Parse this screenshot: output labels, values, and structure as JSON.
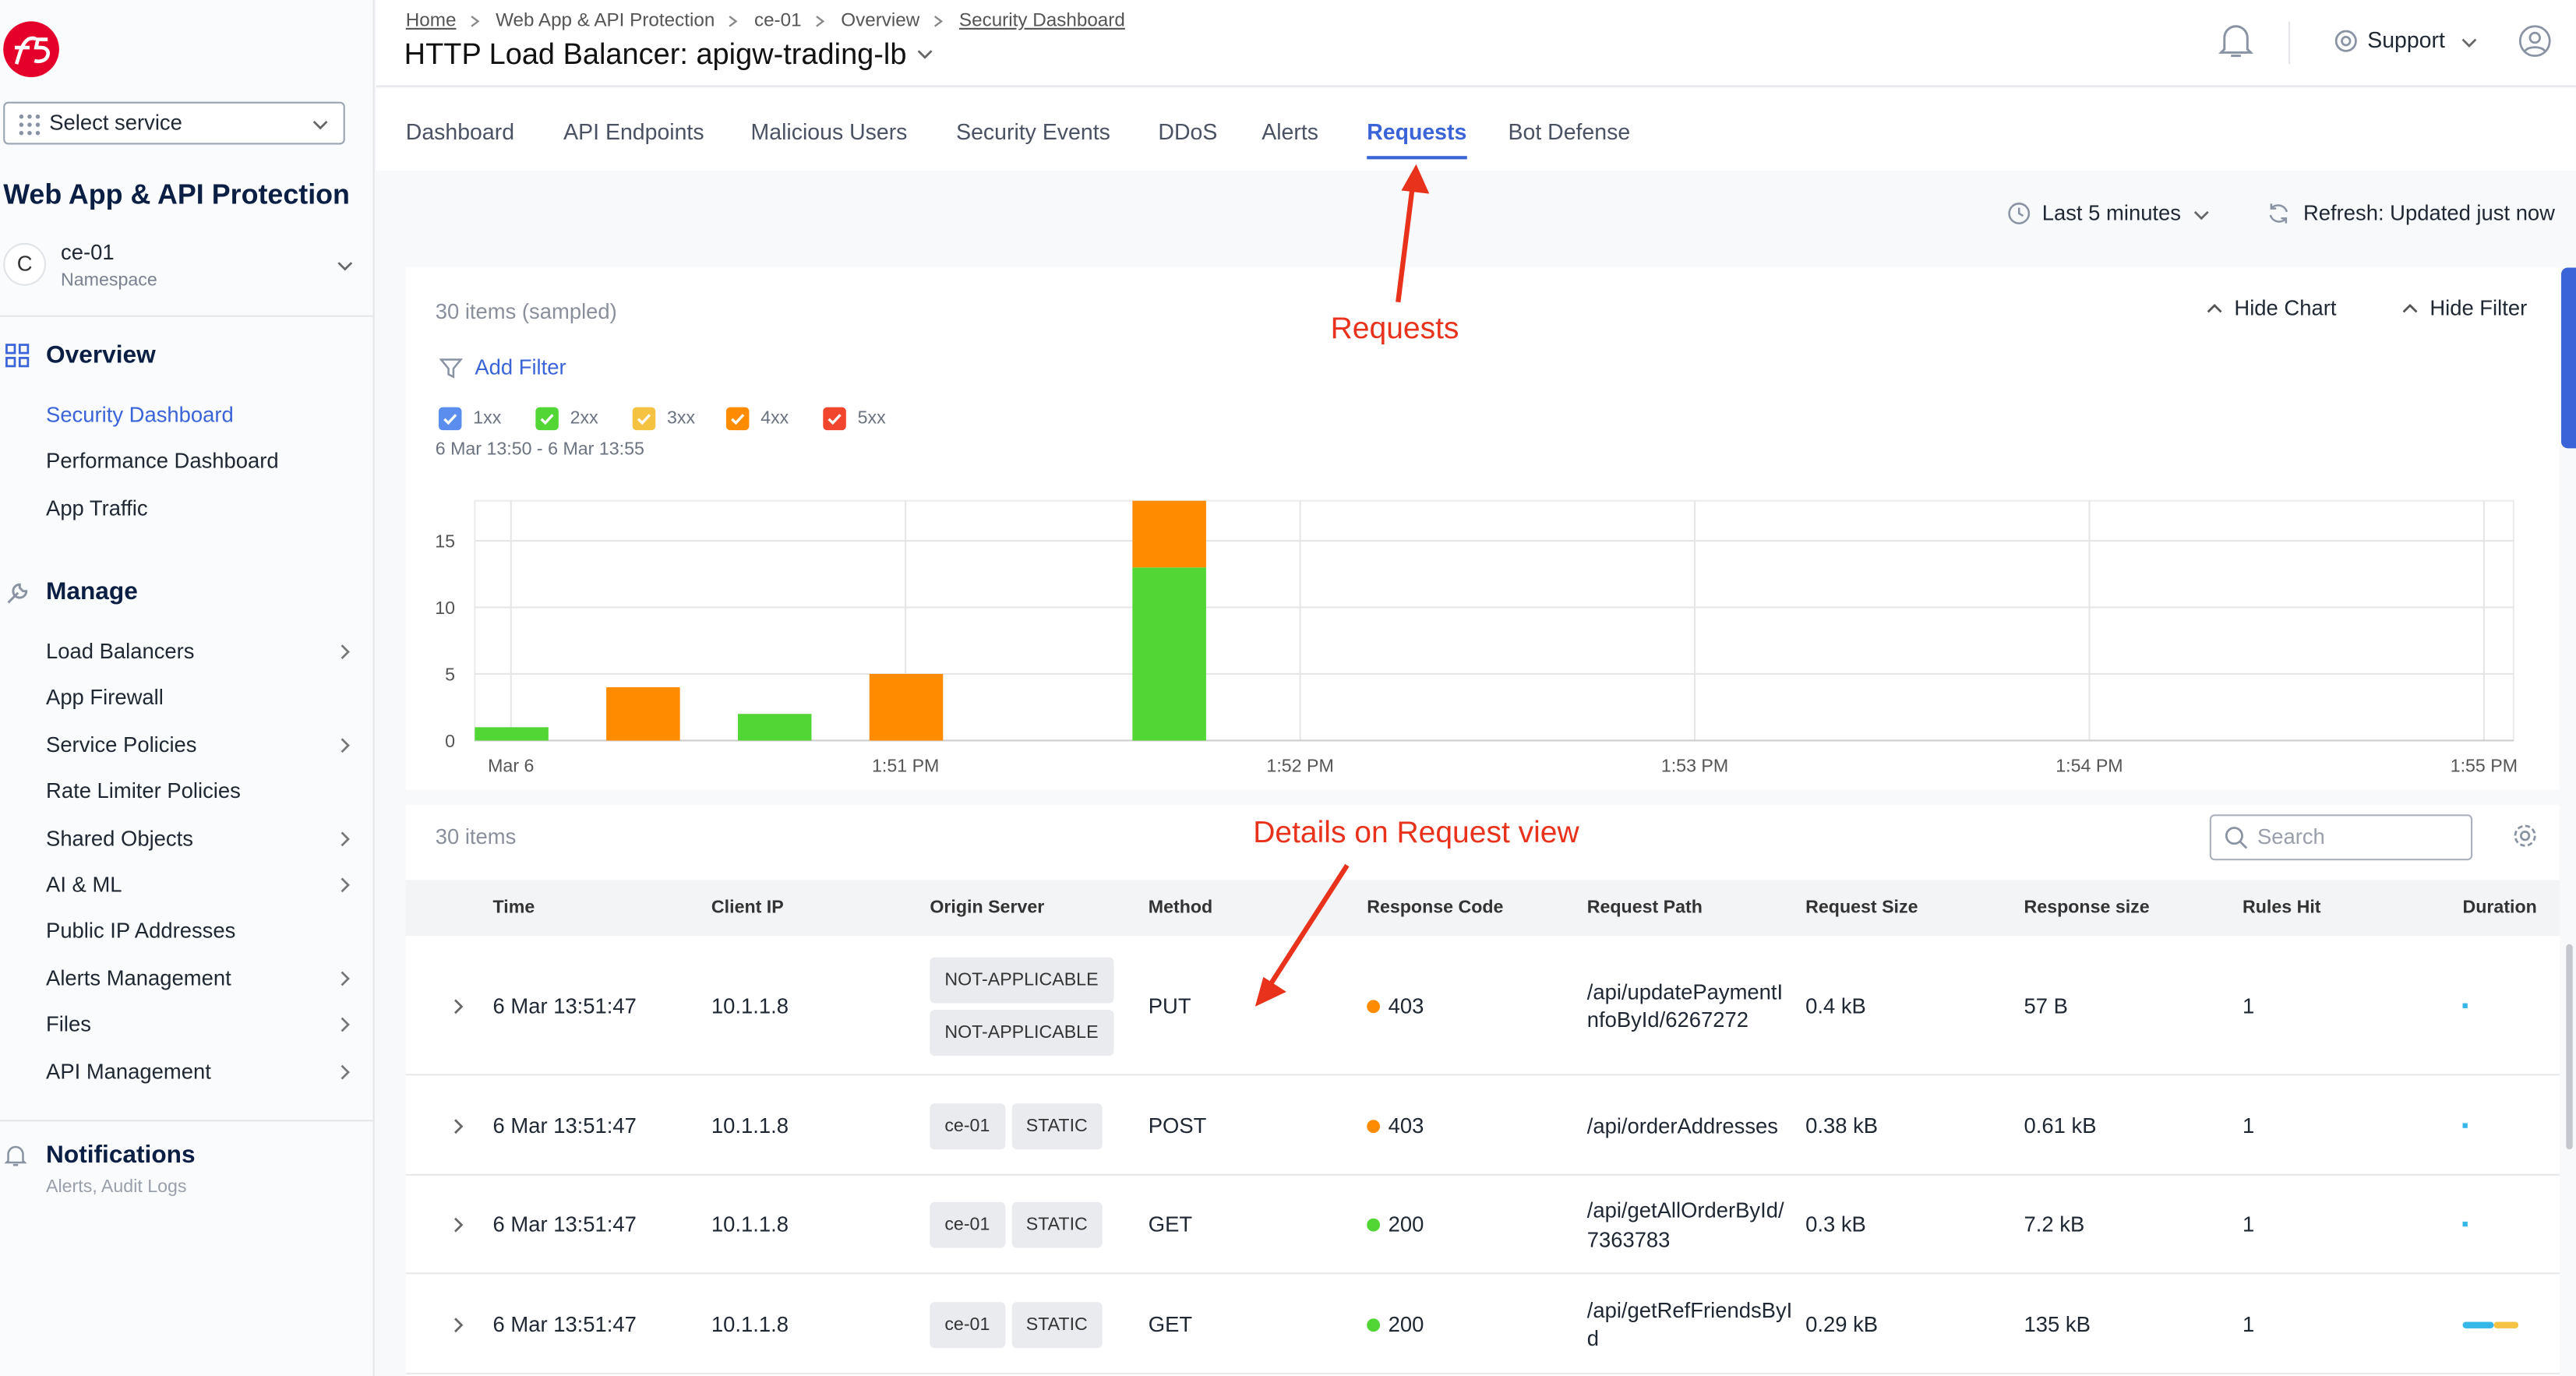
{
  "header": {
    "breadcrumbs": [
      "Home",
      "Web App & API Protection",
      "ce-01",
      "Overview",
      "Security Dashboard"
    ],
    "title": "HTTP Load Balancer: apigw-trading-lb",
    "support": "Support"
  },
  "sidebar": {
    "select_service": "Select service",
    "app_title": "Web App & API Protection",
    "namespace": {
      "initial": "C",
      "name": "ce-01",
      "label": "Namespace"
    },
    "overview": {
      "title": "Overview",
      "items": [
        "Security Dashboard",
        "Performance Dashboard",
        "App Traffic"
      ]
    },
    "manage": {
      "title": "Manage",
      "items": [
        "Load Balancers",
        "App Firewall",
        "Service Policies",
        "Rate Limiter Policies",
        "Shared Objects",
        "AI & ML",
        "Public IP Addresses",
        "Alerts Management",
        "Files",
        "API Management"
      ]
    },
    "notifications": {
      "title": "Notifications",
      "subtitle": "Alerts, Audit Logs"
    }
  },
  "tabs": {
    "items": [
      "Dashboard",
      "API Endpoints",
      "Malicious Users",
      "Security Events",
      "DDoS",
      "Alerts",
      "Requests",
      "Bot Defense"
    ],
    "active": 6
  },
  "time_range": "Last 5 minutes",
  "refresh": "Refresh: Updated just now",
  "chart_panel": {
    "count": "30 items (sampled)",
    "hide_chart": "Hide Chart",
    "hide_filter": "Hide Filter",
    "add_filter": "Add Filter",
    "range": "6 Mar 13:50 - 6 Mar 13:55"
  },
  "chart_data": {
    "type": "bar",
    "stacked": true,
    "categories": [
      null,
      null,
      null,
      null,
      null,
      null,
      null,
      null,
      null,
      null,
      null,
      null,
      null,
      null,
      null,
      null
    ],
    "series": [
      {
        "name": "1xx",
        "color": "#5b8def",
        "values": [
          null,
          null,
          null,
          null,
          null,
          null,
          null,
          null,
          null,
          null,
          null,
          null,
          null,
          null,
          null,
          null
        ]
      },
      {
        "name": "2xx",
        "color": "#52d636",
        "values": [
          1,
          null,
          2,
          null,
          null,
          13,
          null,
          null,
          null,
          null,
          null,
          null,
          null,
          null,
          null,
          null
        ]
      },
      {
        "name": "3xx",
        "color": "#f5c242",
        "values": [
          null,
          null,
          null,
          null,
          null,
          null,
          null,
          null,
          null,
          null,
          null,
          null,
          null,
          null,
          null,
          null
        ]
      },
      {
        "name": "4xx",
        "color": "#ff8c00",
        "values": [
          null,
          4,
          null,
          5,
          null,
          5,
          null,
          null,
          null,
          null,
          null,
          null,
          null,
          null,
          null,
          null
        ]
      },
      {
        "name": "5xx",
        "color": "#f2452d",
        "values": [
          null,
          null,
          null,
          null,
          null,
          null,
          null,
          null,
          null,
          null,
          null,
          null,
          null,
          null,
          null,
          null
        ]
      }
    ],
    "xlim": [
      0,
      15.5
    ],
    "xticks": [
      {
        "value": 0.275,
        "label": "Mar 6"
      },
      {
        "value": 3.275,
        "label": "1:51 PM"
      },
      {
        "value": 6.275,
        "label": "1:52 PM"
      },
      {
        "value": 9.275,
        "label": "1:53 PM"
      },
      {
        "value": 12.275,
        "label": "1:54 PM"
      },
      {
        "value": 15.275,
        "label": "1:55 PM"
      }
    ],
    "ylim": [
      0,
      18
    ],
    "yticks": [
      0,
      5,
      10,
      15
    ],
    "grid": true
  },
  "table": {
    "count": "30 items",
    "search_placeholder": "Search",
    "columns": [
      "Time",
      "Client IP",
      "Origin Server",
      "Method",
      "Response Code",
      "Request Path",
      "Request Size",
      "Response size",
      "Rules Hit",
      "Duration"
    ],
    "rows": [
      [
        "6 Mar 13:51:47",
        "10.1.1.8",
        [
          "NOT-APPLICABLE",
          "NOT-APPLICABLE"
        ],
        "PUT",
        403,
        "/api/updatePaymentInfoById/6267272",
        "0.4 kB",
        "57 B",
        1
      ],
      [
        "6 Mar 13:51:47",
        "10.1.1.8",
        [
          "ce-01",
          "STATIC"
        ],
        "POST",
        403,
        "/api/orderAddresses",
        "0.38 kB",
        "0.61 kB",
        1
      ],
      [
        "6 Mar 13:51:47",
        "10.1.1.8",
        [
          "ce-01",
          "STATIC"
        ],
        "GET",
        200,
        "/api/getAllOrderById/7363783",
        "0.3 kB",
        "7.2 kB",
        1
      ],
      [
        "6 Mar 13:51:47",
        "10.1.1.8",
        [
          "ce-01",
          "STATIC"
        ],
        "GET",
        200,
        "/api/getRefFriendsById",
        "0.29 kB",
        "135 kB",
        1
      ]
    ]
  },
  "annotations": [
    "Requests",
    "Details on Request view"
  ]
}
